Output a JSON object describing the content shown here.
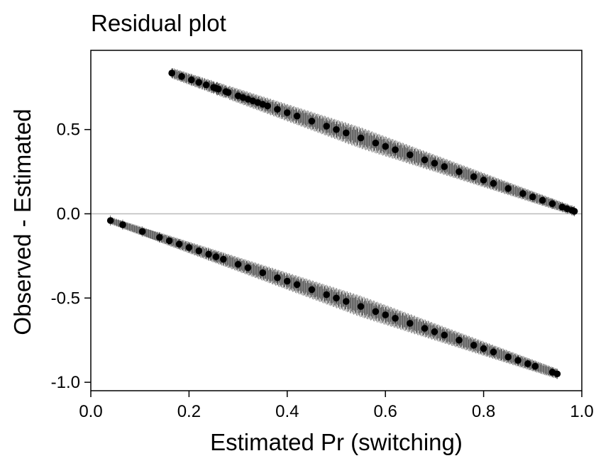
{
  "chart_data": {
    "type": "scatter",
    "title": "Residual plot",
    "xlabel": "Estimated Pr (switching)",
    "ylabel": "Observed - Estimated",
    "xlim": [
      0.0,
      1.0
    ],
    "ylim": [
      -1.05,
      0.97
    ],
    "x_ticks": [
      0.0,
      0.2,
      0.4,
      0.6,
      0.8,
      1.0
    ],
    "x_tick_labels": [
      "0.0",
      "0.2",
      "0.4",
      "0.6",
      "0.8",
      "1.0"
    ],
    "y_ticks": [
      -1.0,
      -0.5,
      0.0,
      0.5
    ],
    "y_tick_labels": [
      "-1.0",
      "-0.5",
      "0.0",
      "0.5"
    ],
    "reference_line_y": 0,
    "grid": false,
    "legend": "none",
    "point_color": "#000000",
    "errorbar_color": "#444444",
    "reference_line_color": "#bbbbbb",
    "series": [
      {
        "x": [
          0.165,
          0.185,
          0.205,
          0.22,
          0.235,
          0.25,
          0.255,
          0.26,
          0.275,
          0.28,
          0.3,
          0.31,
          0.32,
          0.33,
          0.34,
          0.35,
          0.36,
          0.38,
          0.4,
          0.42,
          0.45,
          0.48,
          0.5,
          0.52,
          0.55,
          0.58,
          0.6,
          0.62,
          0.65,
          0.68,
          0.7,
          0.72,
          0.75,
          0.78,
          0.8,
          0.82,
          0.85,
          0.88,
          0.9,
          0.92,
          0.94,
          0.96,
          0.97,
          0.98,
          0.985
        ],
        "y": [
          0.835,
          0.815,
          0.795,
          0.78,
          0.765,
          0.75,
          0.745,
          0.74,
          0.725,
          0.72,
          0.7,
          0.69,
          0.68,
          0.67,
          0.66,
          0.65,
          0.64,
          0.62,
          0.6,
          0.58,
          0.55,
          0.52,
          0.5,
          0.48,
          0.45,
          0.42,
          0.4,
          0.38,
          0.35,
          0.32,
          0.3,
          0.28,
          0.25,
          0.22,
          0.2,
          0.18,
          0.15,
          0.12,
          0.1,
          0.08,
          0.06,
          0.04,
          0.03,
          0.02,
          0.015
        ]
      },
      {
        "x": [
          0.04,
          0.065,
          0.105,
          0.14,
          0.16,
          0.18,
          0.2,
          0.22,
          0.24,
          0.255,
          0.27,
          0.3,
          0.32,
          0.35,
          0.38,
          0.4,
          0.42,
          0.45,
          0.48,
          0.5,
          0.52,
          0.55,
          0.58,
          0.6,
          0.62,
          0.65,
          0.68,
          0.7,
          0.72,
          0.75,
          0.78,
          0.8,
          0.82,
          0.85,
          0.87,
          0.89,
          0.905,
          0.94,
          0.95
        ],
        "y": [
          -0.04,
          -0.065,
          -0.105,
          -0.14,
          -0.16,
          -0.18,
          -0.2,
          -0.22,
          -0.24,
          -0.255,
          -0.27,
          -0.3,
          -0.32,
          -0.35,
          -0.38,
          -0.4,
          -0.42,
          -0.45,
          -0.48,
          -0.5,
          -0.52,
          -0.55,
          -0.58,
          -0.6,
          -0.62,
          -0.65,
          -0.68,
          -0.7,
          -0.72,
          -0.75,
          -0.78,
          -0.8,
          -0.82,
          -0.85,
          -0.87,
          -0.89,
          -0.905,
          -0.94,
          -0.95
        ]
      }
    ]
  }
}
